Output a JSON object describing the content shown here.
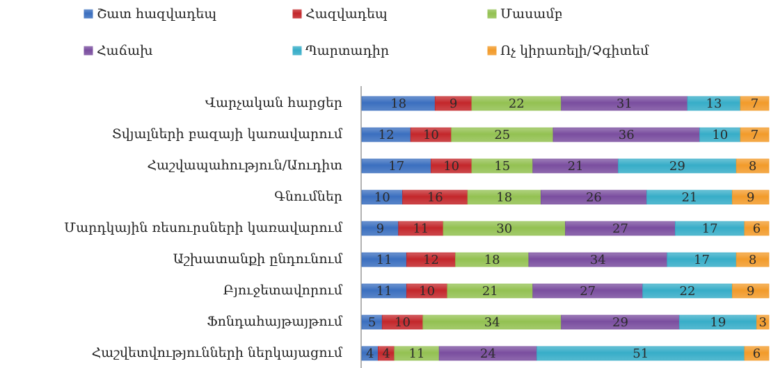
{
  "chart_data": {
    "type": "stacked_bar_horizontal",
    "categories": [
      "Վարչական հարցեր",
      "Տվյալների բազայի կառավարում",
      "Հաշվապահություն/Աուդիտ",
      "Գնումներ",
      "Մարդկային ռեսուրսների կառավարում",
      "Աշխատանքի ընդունում",
      "Բյուջետավորում",
      "Ֆոնդահայթայթում",
      "Հաշվետվությունների ներկայացում"
    ],
    "series": [
      {
        "name": "Շատ հազվադեպ",
        "color": "#3b6fbf",
        "values": [
          18,
          12,
          17,
          10,
          9,
          11,
          11,
          5,
          4
        ]
      },
      {
        "name": "Հազվադեպ",
        "color": "#c3272b",
        "values": [
          9,
          10,
          10,
          16,
          11,
          12,
          10,
          10,
          4
        ]
      },
      {
        "name": "Մասամբ",
        "color": "#93c152",
        "values": [
          22,
          25,
          15,
          18,
          30,
          18,
          21,
          34,
          11
        ]
      },
      {
        "name": "Հաճախ",
        "color": "#7a4e9f",
        "values": [
          31,
          36,
          21,
          26,
          27,
          34,
          27,
          29,
          24
        ]
      },
      {
        "name": "Պարտադիր",
        "color": "#37adc8",
        "values": [
          13,
          10,
          29,
          21,
          17,
          17,
          22,
          19,
          51
        ]
      },
      {
        "name": "Ոչ կիրառելի/Չգիտեմ",
        "color": "#f29b2b",
        "values": [
          7,
          7,
          8,
          9,
          6,
          8,
          9,
          3,
          6
        ]
      }
    ],
    "legend": "top",
    "value_labels_shown": true
  }
}
